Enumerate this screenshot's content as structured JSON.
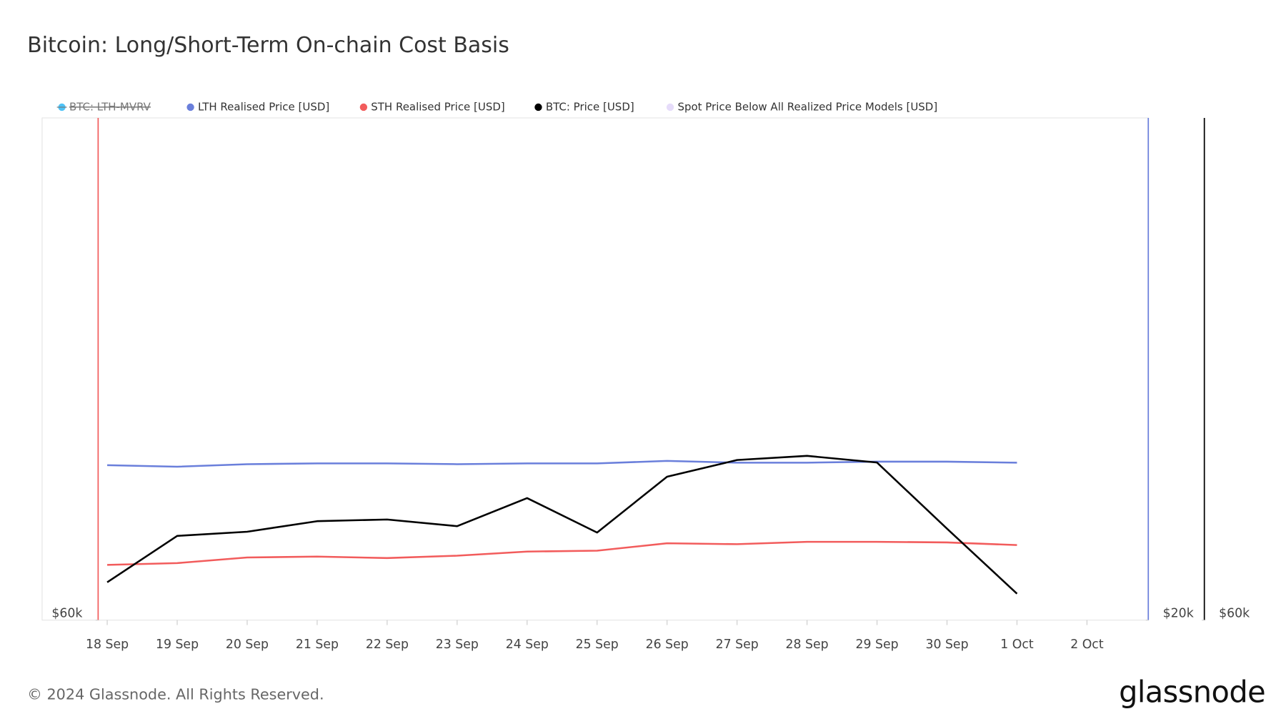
{
  "chart_data": {
    "type": "line",
    "title": "Bitcoin: Long/Short-Term On-chain Cost Basis",
    "footer": "© 2024 Glassnode. All Rights Reserved.",
    "brand": "glassnode",
    "categories": [
      "18 Sep",
      "19 Sep",
      "20 Sep",
      "21 Sep",
      "22 Sep",
      "23 Sep",
      "24 Sep",
      "25 Sep",
      "26 Sep",
      "27 Sep",
      "28 Sep",
      "29 Sep",
      "30 Sep",
      "1 Oct",
      "2 Oct"
    ],
    "series": [
      {
        "name": "BTC: LTH-MVRV",
        "color": "#4fc3f7",
        "visible": false,
        "values": [
          null,
          null,
          null,
          null,
          null,
          null,
          null,
          null,
          null,
          null,
          null,
          null,
          null,
          null,
          null
        ]
      },
      {
        "name": "LTH Realised Price [USD]",
        "color": "#6a7fdb",
        "axis": "y2",
        "values": [
          20617,
          20611,
          20621,
          20624,
          20624,
          20621,
          20624,
          20624,
          20634,
          20627,
          20627,
          20631,
          20631,
          20627,
          null
        ]
      },
      {
        "name": "STH Realised Price [USD]",
        "color": "#f25c5c",
        "axis": "y",
        "values": [
          61870,
          61930,
          62120,
          62150,
          62100,
          62180,
          62320,
          62350,
          62600,
          62570,
          62650,
          62650,
          62630,
          62540,
          null
        ]
      },
      {
        "name": "BTC: Price [USD]",
        "color": "#000000",
        "axis": "y3",
        "values": [
          61360,
          63030,
          63180,
          63560,
          63620,
          63380,
          64390,
          63150,
          65160,
          65760,
          65910,
          65670,
          63290,
          60950,
          null
        ]
      },
      {
        "name": "Spot Price Below All Realized Price Models [USD]",
        "color": "#e6dcfa",
        "values": [
          null,
          null,
          null,
          null,
          null,
          null,
          null,
          null,
          null,
          null,
          null,
          null,
          null,
          null,
          null
        ]
      }
    ],
    "ylim": [
      60000,
      77000
    ],
    "yticks": [
      {
        "value": 60000,
        "label": "$60k"
      }
    ],
    "y2lim": [
      20000,
      22000
    ],
    "y2ticks": [
      {
        "value": 20000,
        "label": "$20k"
      }
    ],
    "y3lim": [
      60000,
      78070
    ],
    "y3ticks": [
      {
        "value": 60000,
        "label": "$60k"
      }
    ]
  }
}
